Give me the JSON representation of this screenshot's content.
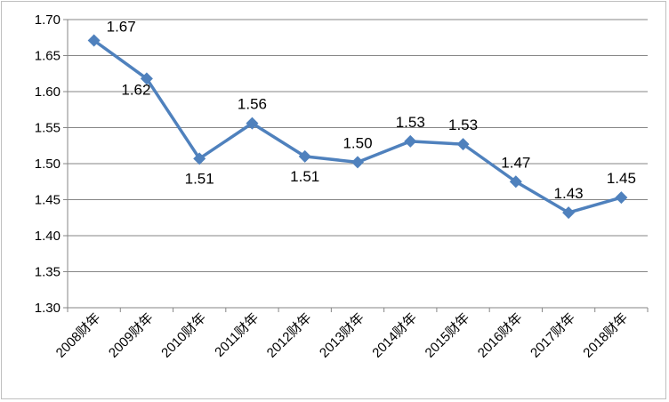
{
  "chart_data": {
    "type": "line",
    "title": "",
    "xlabel": "",
    "ylabel": "",
    "categories": [
      "2008财年",
      "2009财年",
      "2010财年",
      "2011财年",
      "2012财年",
      "2013财年",
      "2014财年",
      "2015财年",
      "2016财年",
      "2017财年",
      "2018财年"
    ],
    "series": [
      {
        "values": [
          1.671,
          1.618,
          1.507,
          1.556,
          1.51,
          1.502,
          1.531,
          1.527,
          1.475,
          1.432,
          1.453
        ],
        "labels": [
          "1.67",
          "1.62",
          "1.51",
          "1.56",
          "1.51",
          "1.50",
          "1.53",
          "1.53",
          "1.47",
          "1.43",
          "1.45"
        ],
        "color": "#4f81bd",
        "marker": "diamond"
      }
    ],
    "ylim": [
      1.3,
      1.7
    ],
    "yticks": [
      "1.30",
      "1.35",
      "1.40",
      "1.45",
      "1.50",
      "1.55",
      "1.60",
      "1.65",
      "1.70"
    ],
    "grid": true,
    "legend": "none"
  }
}
